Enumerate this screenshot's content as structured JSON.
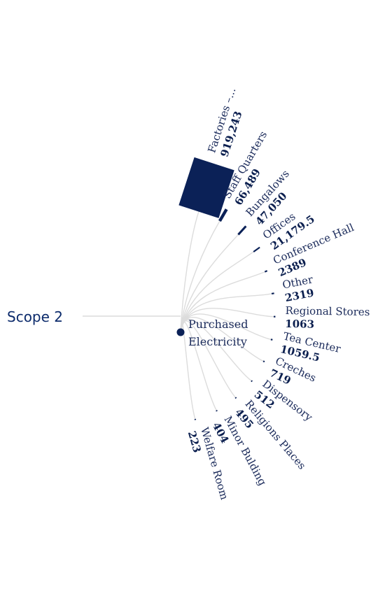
{
  "chart_data": {
    "type": "radial-bar-tree",
    "root": "Scope 2",
    "hub": [
      "Purchased",
      "Electricity"
    ],
    "categories": [
      "Factories –...",
      "Staff Quarters",
      "Bungalows",
      "Offices",
      "Conference Hall",
      "Other",
      "Regional Stores",
      "Tea Center",
      "Creches",
      "Dispensory",
      "Religions Places",
      "Minor Bulding",
      "Welfare Room"
    ],
    "values": [
      919243,
      66489,
      47050,
      21179.5,
      2389,
      2319,
      1063,
      1059.5,
      719,
      512,
      495,
      404,
      223
    ],
    "value_labels": [
      "919,243",
      "66,489",
      "47,050",
      "21,179.5",
      "2389",
      "2319",
      "1063",
      "1059.5",
      "719",
      "512",
      "495",
      "404",
      "223"
    ],
    "colors": {
      "bar": "#0b2157",
      "link": "#dcdcdc",
      "root_text": "#0b2a6b",
      "label_text": "#1a2a5a"
    }
  }
}
